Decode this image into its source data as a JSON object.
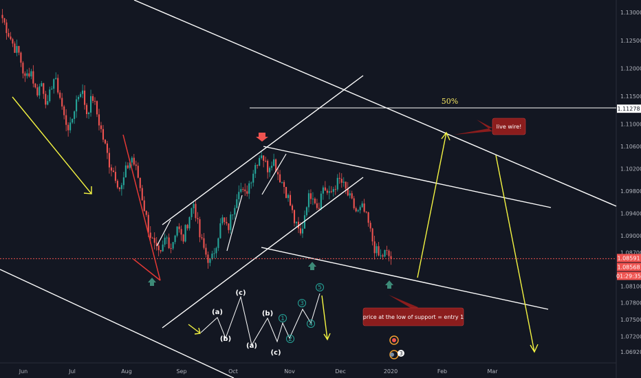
{
  "chart_data": {
    "type": "candlestick",
    "instrument_price_scale": "EUR/USD",
    "x_tick_labels": [
      "Jun",
      "Jul",
      "Aug",
      "Sep",
      "Oct",
      "Nov",
      "Dec",
      "2020",
      "Feb",
      "Mar"
    ],
    "y_tick_labels": [
      "1.13000",
      "1.12500",
      "1.12000",
      "1.11500",
      "1.11000",
      "1.10600",
      "1.10200",
      "1.09800",
      "1.09400",
      "1.09000",
      "1.08700",
      "1.08100",
      "1.07800",
      "1.07500",
      "1.07200",
      "1.06920"
    ],
    "ylim": [
      1.0675,
      1.132
    ],
    "price_tags": [
      {
        "label": "1.11278",
        "value": 1.11278,
        "bg": "#ffffff",
        "fg": "#131722"
      },
      {
        "label": "1.08591",
        "value": 1.08591,
        "bg": "#ef5350",
        "fg": "#ffffff"
      },
      {
        "label": "1.08568",
        "value": 1.08568,
        "bg": "#ef5350",
        "fg": "#ffffff"
      },
      {
        "label": "01:29:35",
        "value": 1.0842,
        "bg": "#ef5350",
        "fg": "#ffffff"
      }
    ],
    "current_price": 1.08591,
    "fib_level": {
      "label": "50%",
      "value": 1.11278
    },
    "candles_approx": [
      1.129,
      1.1265,
      1.124,
      1.1225,
      1.118,
      1.12,
      1.1155,
      1.1175,
      1.113,
      1.1185,
      1.116,
      1.111,
      1.109,
      1.114,
      1.1165,
      1.112,
      1.115,
      1.111,
      1.107,
      1.103,
      1.101,
      1.098,
      1.102,
      1.104,
      1.101,
      1.096,
      1.091,
      1.088,
      1.086,
      1.09,
      1.088,
      1.092,
      1.089,
      1.093,
      1.096,
      1.09,
      1.087,
      1.085,
      1.089,
      1.093,
      1.091,
      1.095,
      1.099,
      1.097,
      1.1,
      1.103,
      1.105,
      1.102,
      1.104,
      1.101,
      1.099,
      1.096,
      1.092,
      1.09,
      1.096,
      1.098,
      1.095,
      1.099,
      1.097,
      1.099,
      1.1,
      1.098,
      1.096,
      1.094,
      1.095,
      1.092,
      1.088,
      1.086,
      1.087,
      1.086
    ],
    "annotations": {
      "callout_live_wire": "live wire!",
      "callout_entry": "price at the low of support = entry 1",
      "wave_labels": [
        "(a)",
        "(b)",
        "(c)",
        "(a)",
        "(b)",
        "(c)"
      ],
      "impulse_labels": [
        "1",
        "2",
        "3",
        "4",
        "5"
      ],
      "badge_count": "3"
    },
    "colors": {
      "background": "#131722",
      "up_candle": "#26a69a",
      "down_candle": "#ef5350",
      "trend_lines": "#ffffff",
      "projection_arrows": "#f5f542",
      "callout_bg": "#8b1d1d",
      "marker_up": "#3d8b78",
      "marker_down": "#ef5350"
    }
  }
}
